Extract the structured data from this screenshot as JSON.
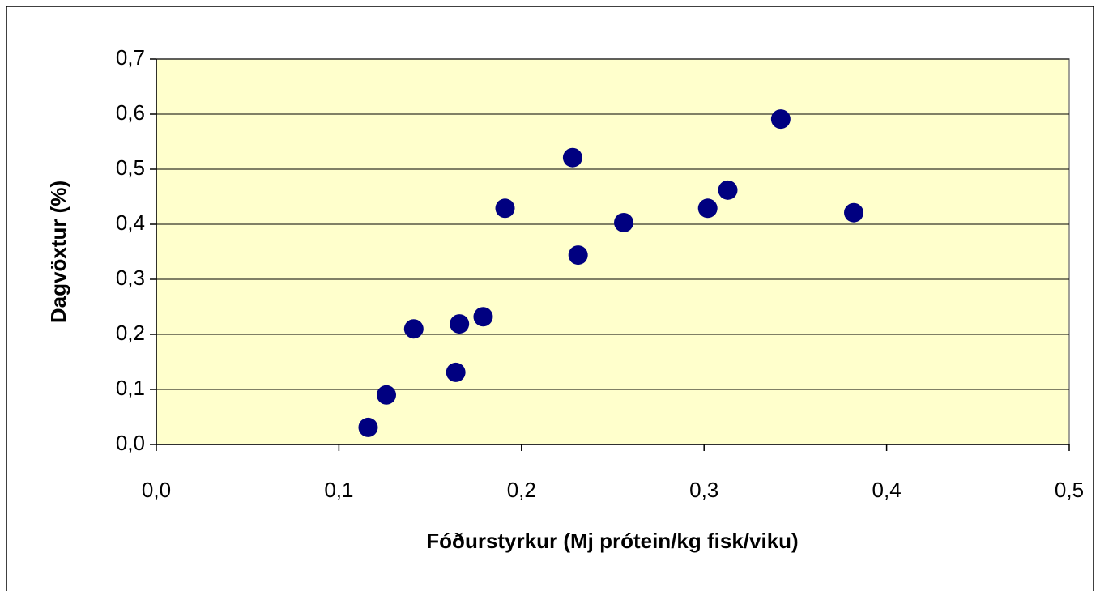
{
  "chart_data": {
    "type": "scatter",
    "x_label": "Fóðurstyrkur (Mj prótein/kg fisk/viku)",
    "y_label": "Dagvöxtur (%)",
    "x": [
      0.116,
      0.126,
      0.141,
      0.164,
      0.166,
      0.179,
      0.191,
      0.228,
      0.231,
      0.256,
      0.302,
      0.313,
      0.342,
      0.382
    ],
    "series": [
      {
        "color": "#000080",
        "values": [
          0.031,
          0.09,
          0.21,
          0.131,
          0.219,
          0.232,
          0.429,
          0.521,
          0.344,
          0.403,
          0.429,
          0.462,
          0.591,
          0.421
        ]
      }
    ],
    "xlim": [
      0,
      0.5
    ],
    "xticks": [
      {
        "value": 0,
        "label": "0,0"
      },
      {
        "value": 0.1,
        "label": "0,1"
      },
      {
        "value": 0.2,
        "label": "0,2"
      },
      {
        "value": 0.3,
        "label": "0,3"
      },
      {
        "value": 0.4,
        "label": "0,4"
      },
      {
        "value": 0.5,
        "label": "0,5"
      }
    ],
    "ylim": [
      0,
      0.7
    ],
    "yticks": [
      {
        "value": 0,
        "label": "0,0"
      },
      {
        "value": 0.1,
        "label": "0,1"
      },
      {
        "value": 0.2,
        "label": "0,2"
      },
      {
        "value": 0.3,
        "label": "0,3"
      },
      {
        "value": 0.4,
        "label": "0,4"
      },
      {
        "value": 0.5,
        "label": "0,5"
      },
      {
        "value": 0.6,
        "label": "0,6"
      },
      {
        "value": 0.7,
        "label": "0,7"
      }
    ],
    "grid": true,
    "plot_background": "#FFFFCC"
  }
}
